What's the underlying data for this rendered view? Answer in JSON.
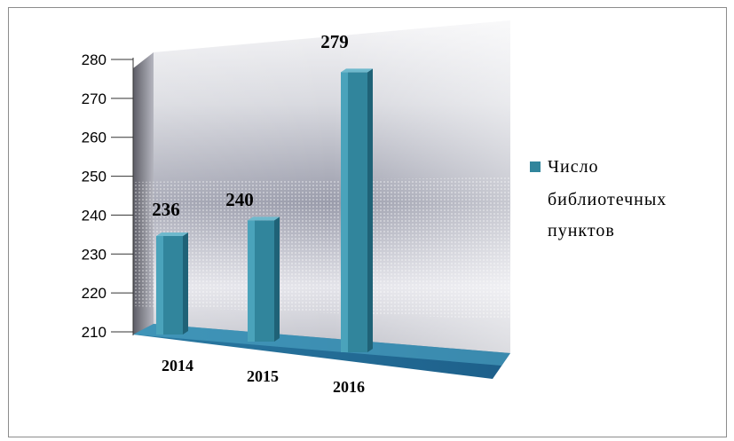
{
  "chart_data": {
    "type": "bar",
    "title": "",
    "xlabel": "",
    "ylabel": "",
    "categories": [
      "2014",
      "2015",
      "2016"
    ],
    "series": [
      {
        "name": "Число библиотечных пунктов",
        "values": [
          236,
          240,
          279
        ],
        "color": "#31859c"
      }
    ],
    "ylim": [
      210,
      280
    ],
    "yticks": [
      "210",
      "220",
      "230",
      "240",
      "250",
      "260",
      "270",
      "280"
    ],
    "data_labels": [
      "236",
      "240",
      "279"
    ],
    "legend": {
      "position": "right",
      "lines": [
        "Число",
        "библиотечных",
        "пунктов"
      ]
    },
    "style": "3d-column"
  }
}
